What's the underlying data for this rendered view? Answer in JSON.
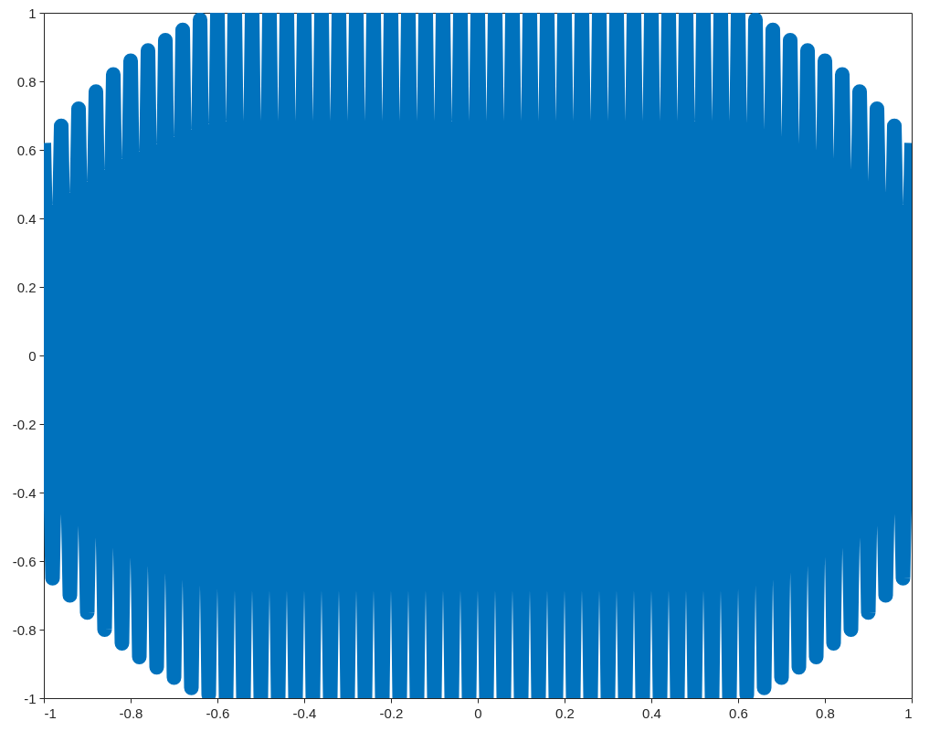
{
  "chart_data": {
    "type": "line",
    "xlim": [
      -1,
      1
    ],
    "ylim": [
      -1,
      1
    ],
    "xticks": [
      -1,
      -0.8,
      -0.6,
      -0.4,
      -0.2,
      0,
      0.2,
      0.4,
      0.6,
      0.8,
      1
    ],
    "yticks": [
      -1,
      -0.8,
      -0.6,
      -0.4,
      -0.2,
      0,
      0.2,
      0.4,
      0.6,
      0.8,
      1
    ],
    "grid": false,
    "series": [
      {
        "color": "#0072bd",
        "x": [
          -1,
          -0.98,
          -0.96,
          -0.94,
          -0.92,
          -0.9,
          -0.88,
          -0.86,
          -0.84,
          -0.82,
          -0.8,
          -0.78,
          -0.76,
          -0.74,
          -0.72,
          -0.7,
          -0.68,
          -0.66,
          -0.64,
          -0.62,
          -0.6,
          -0.58,
          -0.56,
          -0.54,
          -0.52,
          -0.5,
          -0.48,
          -0.46,
          -0.44,
          -0.42,
          -0.4,
          -0.38,
          -0.36,
          -0.34,
          -0.32,
          -0.3,
          -0.28,
          -0.26,
          -0.24,
          -0.22,
          -0.2,
          -0.18,
          -0.16,
          -0.14,
          -0.12,
          -0.1,
          -0.08,
          -0.06,
          -0.04,
          -0.02,
          0,
          0.02,
          0.04,
          0.06,
          0.08,
          0.1,
          0.12,
          0.14,
          0.16,
          0.18,
          0.2,
          0.22,
          0.24,
          0.26,
          0.28,
          0.3,
          0.32,
          0.34,
          0.36,
          0.38,
          0.4,
          0.42,
          0.44,
          0.46,
          0.48,
          0.5,
          0.52,
          0.54,
          0.56,
          0.58,
          0.6,
          0.62,
          0.64,
          0.66,
          0.68,
          0.7,
          0.72,
          0.74,
          0.76,
          0.78,
          0.8,
          0.82,
          0.84,
          0.86,
          0.88,
          0.9,
          0.92,
          0.94,
          0.96,
          0.98,
          1
        ],
        "values": [
          0.62,
          -0.65,
          0.67,
          -0.7,
          0.72,
          -0.75,
          0.77,
          -0.8,
          0.82,
          -0.84,
          0.86,
          -0.88,
          0.89,
          -0.91,
          0.92,
          -0.94,
          0.95,
          -0.97,
          0.98,
          -0.99,
          1,
          -1,
          1,
          -1,
          1,
          -1,
          1,
          -1,
          1,
          -1,
          1,
          -1,
          1,
          -1,
          1,
          -1,
          1,
          -1,
          1,
          -1,
          1,
          -1,
          1,
          -1,
          1,
          -1,
          1,
          -1,
          1,
          -1,
          1,
          -1,
          1,
          -1,
          1,
          -1,
          1,
          -1,
          1,
          -1,
          1,
          -1,
          1,
          -1,
          1,
          -1,
          1,
          -1,
          1,
          -1,
          1,
          -1,
          1,
          -1,
          1,
          -1,
          1,
          -1,
          1,
          -1,
          1,
          -0.99,
          0.98,
          -0.97,
          0.95,
          -0.94,
          0.92,
          -0.91,
          0.89,
          -0.88,
          0.86,
          -0.84,
          0.82,
          -0.8,
          0.77,
          -0.75,
          0.72,
          -0.7,
          0.67,
          -0.65,
          0.62
        ]
      }
    ]
  }
}
